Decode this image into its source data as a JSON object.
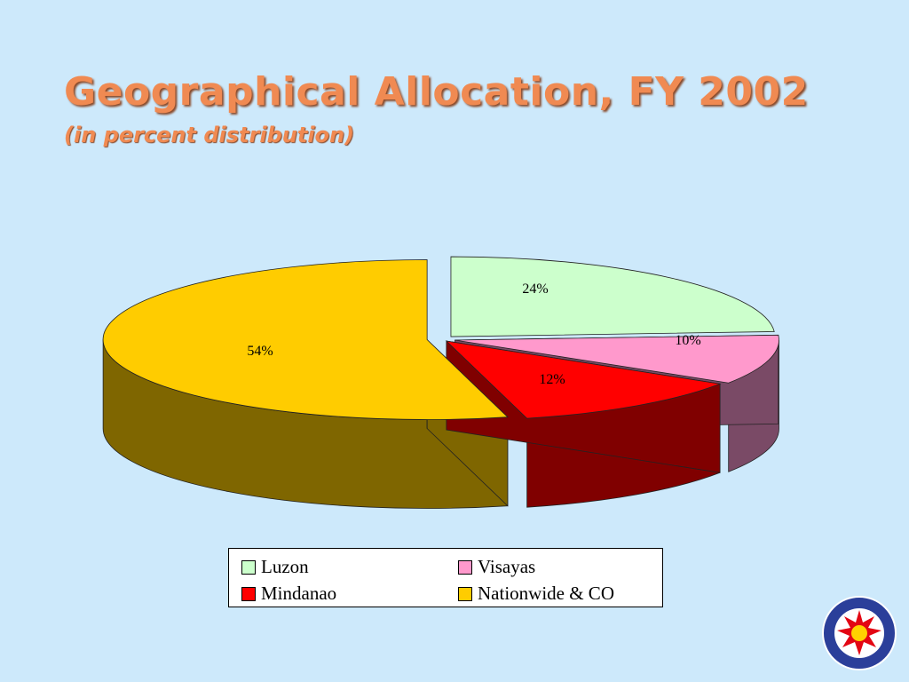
{
  "slide": {
    "title": "Geographical Allocation, FY 2002",
    "subtitle": "(in percent distribution)"
  },
  "colors": {
    "background": "#cde9fb",
    "title": "#f08a52"
  },
  "chart_data": {
    "type": "pie",
    "three_d": true,
    "title": "",
    "legend_placement": "bottom",
    "slices": [
      {
        "name": "Luzon",
        "value": 24,
        "label": "24%",
        "color": "#ccffcc",
        "side_color": "#8a9e8a"
      },
      {
        "name": "Visayas",
        "value": 10,
        "label": "10%",
        "color": "#ff99cc",
        "side_color": "#7a4a66"
      },
      {
        "name": "Mindanao",
        "value": 12,
        "label": "12%",
        "color": "#ff0000",
        "side_color": "#800000"
      },
      {
        "name": "Nationwide & CO",
        "value": 54,
        "label": "54%",
        "color": "#ffcc00",
        "side_color": "#7f6600"
      }
    ]
  },
  "logo": {
    "name": "seal-icon"
  }
}
